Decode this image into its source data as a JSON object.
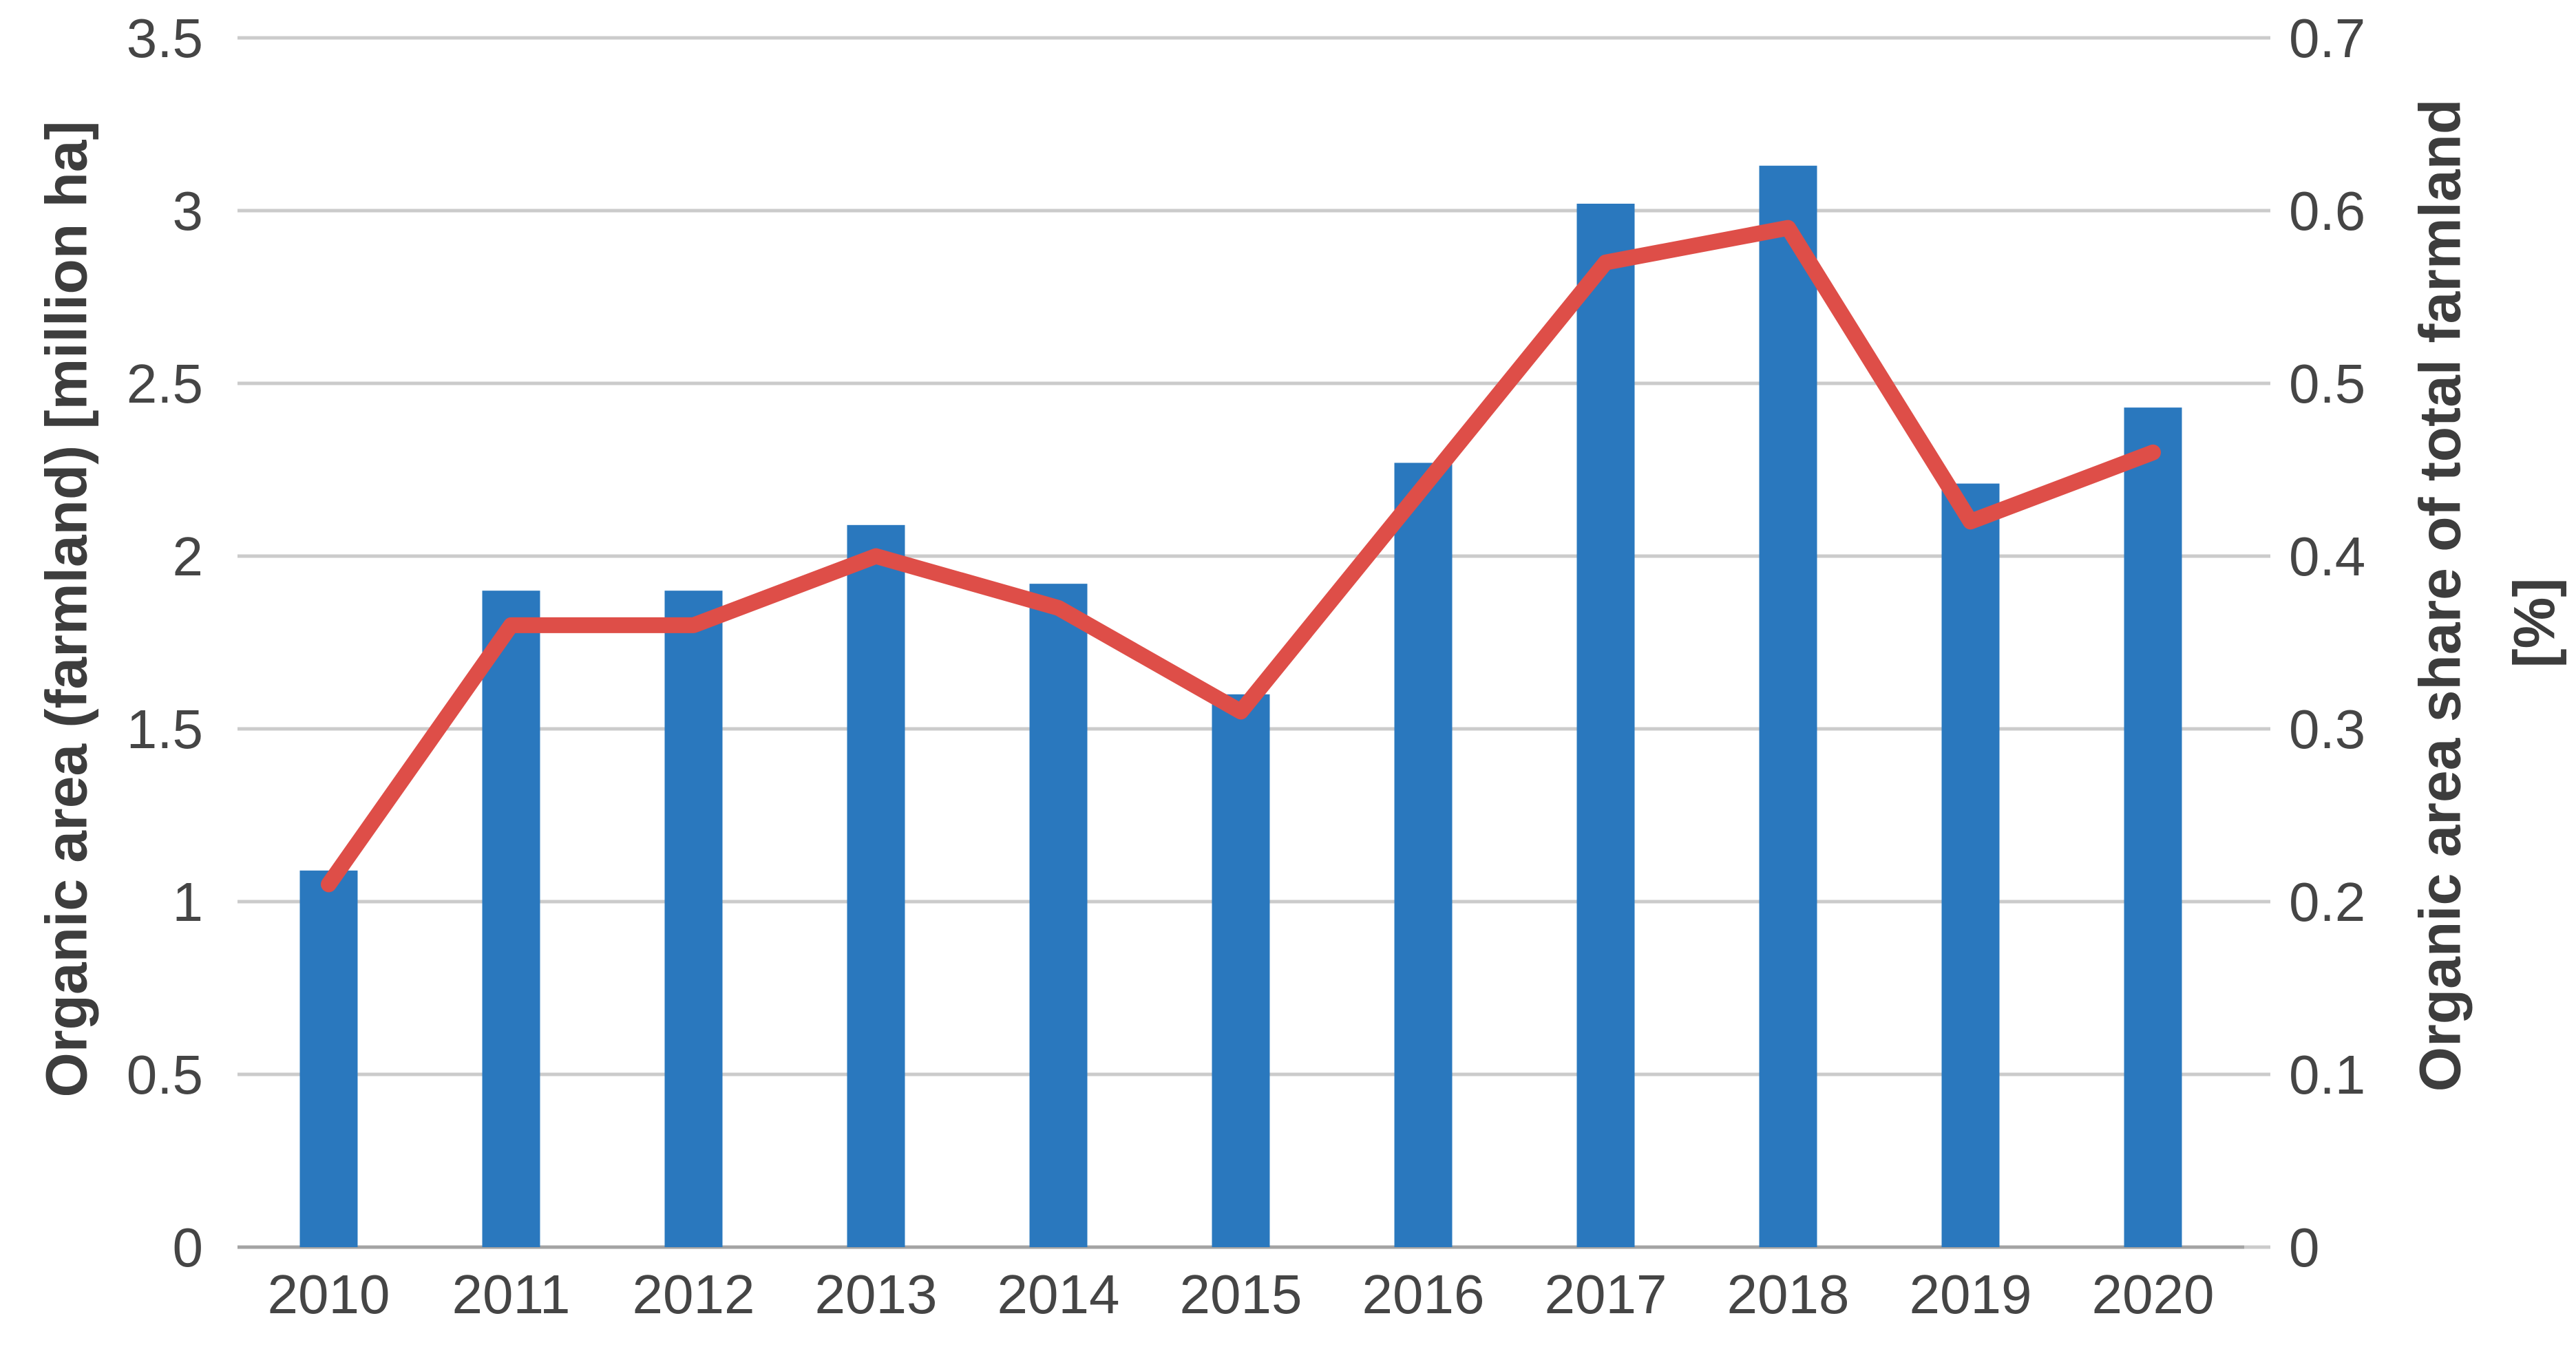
{
  "figure": {
    "background": "#ffffff",
    "left_axis": {
      "title": "Organic area (farmland) [million ha]",
      "tick_labels": [
        "3.5",
        "3",
        "2.5",
        "2",
        "1.5",
        "1",
        "0.5",
        "0"
      ],
      "min": 0,
      "max": 3.5
    },
    "right_axis": {
      "title": "Organic area share of total farmland",
      "title_unit": "[%]",
      "tick_labels": [
        "0.7",
        "0.6",
        "0.5",
        "0.4",
        "0.3",
        "0.2",
        "0.1",
        "0"
      ],
      "min": 0,
      "max": 0.7
    }
  },
  "chart_data": {
    "type": "combo",
    "categories": [
      "2010",
      "2011",
      "2012",
      "2013",
      "2014",
      "2015",
      "2016",
      "2017",
      "2018",
      "2019",
      "2020"
    ],
    "series": [
      {
        "name": "Organic area (farmland) [million ha]",
        "type": "bar",
        "axis": "left",
        "color": "#2A78BE",
        "values": [
          1.09,
          1.9,
          1.9,
          2.09,
          1.92,
          1.6,
          2.27,
          3.02,
          3.13,
          2.21,
          2.43
        ]
      },
      {
        "name": "Organic area share of total farmland [%]",
        "type": "line",
        "axis": "right",
        "color": "#DE4E48",
        "values": [
          0.21,
          0.36,
          0.36,
          0.4,
          0.37,
          0.31,
          0.44,
          0.57,
          0.59,
          0.42,
          0.46
        ]
      }
    ],
    "left_ylim": [
      0,
      3.5
    ],
    "right_ylim": [
      0,
      0.7
    ],
    "grid": true,
    "gridline_step_left": 0.5,
    "legend": "none",
    "colors": {
      "bar": "#2A78BE",
      "line": "#DE4E48",
      "gridline": "#CBCBCB",
      "axis_line": "#A3A3A3",
      "tick_text": "#454545",
      "title_text": "#3D3D3D"
    }
  }
}
